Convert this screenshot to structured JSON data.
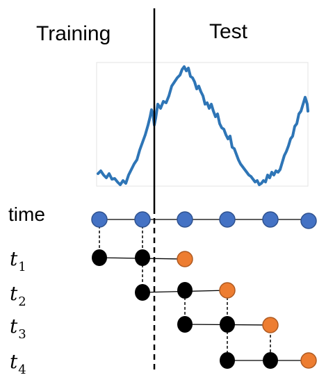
{
  "header": {
    "training": "Training",
    "test": "Test"
  },
  "rows": {
    "time": "time",
    "t1": {
      "base": "t",
      "sub": "1"
    },
    "t2": {
      "base": "t",
      "sub": "2"
    },
    "t3": {
      "base": "t",
      "sub": "3"
    },
    "t4": {
      "base": "t",
      "sub": "4"
    }
  },
  "colors": {
    "series_line": "#2e75b6",
    "time_node": "#4472c4",
    "history_node": "#000000",
    "target_node": "#ed7d31",
    "plot_frame": "#e3e3e3"
  }
}
